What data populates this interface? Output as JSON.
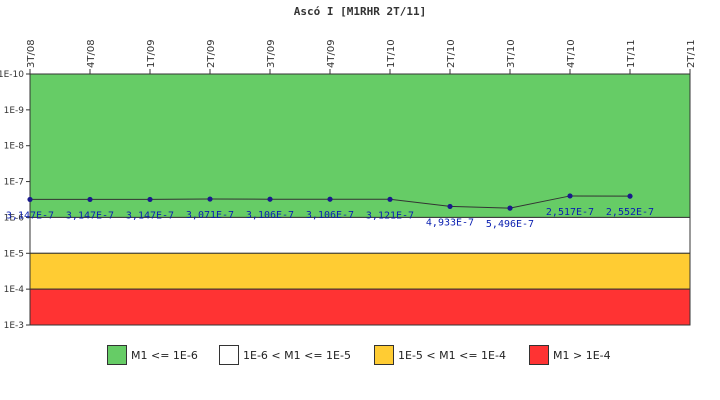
{
  "chart_data": {
    "type": "line",
    "title": "Ascó I [M1RHR 2T/11]",
    "y_scale": "log",
    "ylim": [
      1e-10,
      0.001
    ],
    "y_tick_labels": [
      "1E-10",
      "1E-9",
      "1E-8",
      "1E-7",
      "1E-6",
      "1E-5",
      "1E-4",
      "1E-3"
    ],
    "y_tick_values": [
      1e-10,
      1e-09,
      1e-08,
      1e-07,
      1e-06,
      1e-05,
      0.0001,
      0.001
    ],
    "y_inverted": true,
    "categories": [
      "3T/08",
      "4T/08",
      "1T/09",
      "2T/09",
      "3T/09",
      "4T/09",
      "1T/10",
      "2T/10",
      "3T/10",
      "4T/10",
      "1T/11",
      "2T/11"
    ],
    "series": [
      {
        "values": [
          3.147e-07,
          3.147e-07,
          3.147e-07,
          3.071e-07,
          3.106e-07,
          3.106e-07,
          3.121e-07,
          4.933e-07,
          5.496e-07,
          2.517e-07,
          2.552e-07,
          null
        ],
        "labels": [
          "3,147E-7",
          "3,147E-7",
          "3,147E-7",
          "3,071E-7",
          "3,106E-7",
          "3,106E-7",
          "3,121E-7",
          "4,933E-7",
          "5,496E-7",
          "2,517E-7",
          "2,552E-7",
          ""
        ],
        "color": "#333333",
        "marker_color": "#1a1a8c"
      }
    ],
    "bands": [
      {
        "from": 1e-10,
        "to": 1e-06,
        "color": "#66cc66",
        "label": "M1 <= 1E-6"
      },
      {
        "from": 1e-06,
        "to": 1e-05,
        "color": "#ffffff",
        "label": "1E-6 < M1 <= 1E-5"
      },
      {
        "from": 1e-05,
        "to": 0.0001,
        "color": "#ffcc33",
        "label": "1E-5 < M1 <= 1E-4"
      },
      {
        "from": 0.0001,
        "to": 0.001,
        "color": "#ff3333",
        "label": "M1 > 1E-4"
      }
    ],
    "legend_position": "bottom",
    "grid": false
  }
}
